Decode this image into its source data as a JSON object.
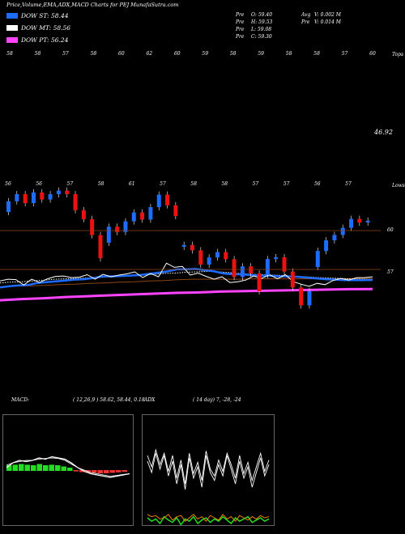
{
  "header": {
    "title": "Price,Volume,EMA,ADX,MACD Charts for PEJ MunafaSutra.com",
    "info_lines": [
      {
        "label": "Pre",
        "value": "O: 59.40"
      },
      {
        "label": "Pre",
        "value": "H: 59.53"
      },
      {
        "label": "Pre",
        "value": "L: 59.08"
      },
      {
        "label": "Pre",
        "value": "C: 59.30"
      }
    ],
    "volume_lines": [
      {
        "label": "Avg",
        "value": "V: 0.002  M"
      },
      {
        "label": "Pre",
        "value": "V: 0.014  M"
      }
    ]
  },
  "legend": [
    {
      "label": "DOW ST: 58.44",
      "color": "#1e6bff"
    },
    {
      "label": "DOW MT: 58.56",
      "color": "#ffffff"
    },
    {
      "label": "DOW PT: 56.24",
      "color": "#ff44ff"
    }
  ],
  "colors": {
    "ema_short": "#1e6bff",
    "ema_mid": "#ffffff",
    "ema_long": "#8b4513",
    "ema_pt": "#ff44ff",
    "up": "#1e6bff",
    "down": "#ee1111",
    "hline": "#8b4513"
  },
  "chart_data": [
    {
      "type": "line",
      "title": "EMA",
      "value_label": "46.92",
      "edge_labels": [
        "Tops",
        "Lows"
      ],
      "top_tick_labels": [
        "58",
        "58",
        "57",
        "58",
        "60",
        "62",
        "60",
        "59",
        "58",
        "59",
        "58",
        "58",
        "57",
        "60"
      ],
      "bottom_tick_labels": [
        "56",
        "56",
        "57",
        "58",
        "61",
        "57",
        "58",
        "58",
        "57",
        "57",
        "56",
        "57"
      ],
      "price": [
        58.2,
        58.6,
        58.5,
        57.2,
        58.6,
        57.8,
        58.7,
        59.3,
        59.4,
        59.0,
        59.1,
        59.7,
        58.6,
        59.8,
        59.2,
        59.6,
        59.9,
        60.4,
        59.0,
        60.0,
        59.2,
        62.5,
        61.5,
        61.7,
        59.6,
        60.1,
        59.3,
        58.6,
        59.2,
        57.8,
        58.0,
        58.4,
        59.4,
        58.8,
        59.7,
        58.7,
        59.7,
        58.0,
        57.4,
        56.9,
        57.6,
        57.3,
        58.3,
        58.8,
        58.4,
        59.0,
        59.0,
        59.2
      ],
      "series": [
        {
          "name": "DOW ST",
          "values": [
            56.6,
            56.9,
            57.1,
            57.2,
            57.7,
            57.9,
            58.1,
            58.3,
            58.5,
            58.6,
            58.9,
            59.3,
            59.3,
            59.4,
            59.5,
            59.6,
            59.9,
            60.2,
            60.5,
            61.0,
            61.0,
            61.1,
            60.8,
            60.5,
            60.0,
            59.8,
            59.8,
            59.6,
            59.5,
            59.5,
            59.3,
            59.3,
            59.2,
            59.0,
            58.8,
            58.6,
            58.5,
            58.4,
            58.4,
            58.4,
            58.44
          ]
        },
        {
          "name": "DOW MT",
          "values": [
            57.7,
            57.9,
            58.0,
            58.2,
            58.4,
            58.6,
            58.7,
            58.8,
            58.9,
            59.0,
            59.2,
            59.3,
            59.5,
            59.6,
            59.8,
            60.0,
            60.1,
            60.3,
            60.4,
            60.5,
            60.4,
            60.2,
            60.0,
            59.8,
            59.7,
            59.6,
            59.5,
            59.3,
            59.2,
            59.0,
            58.9,
            58.8,
            58.7,
            58.6,
            58.56
          ]
        },
        {
          "name": "EMA long",
          "values": [
            56.8,
            56.9,
            57.0,
            57.1,
            57.3,
            57.4,
            57.6,
            57.7,
            57.9,
            58.0,
            58.2,
            58.3,
            58.5,
            58.6,
            58.6,
            58.6,
            58.6,
            58.7,
            58.7,
            58.7,
            58.7,
            58.7,
            58.7,
            58.7,
            58.8,
            58.8
          ]
        },
        {
          "name": "DOW PT",
          "values": [
            53.5,
            53.8,
            54.0,
            54.3,
            54.5,
            54.7,
            54.9,
            55.1,
            55.3,
            55.4,
            55.6,
            55.7,
            55.8,
            55.9,
            56.0,
            56.1,
            56.2,
            56.24
          ]
        }
      ]
    },
    {
      "type": "bar",
      "title": "Candles",
      "level_labels": [
        "60",
        "57"
      ],
      "values": [
        0.6,
        0.4,
        -0.5,
        0.6,
        -0.4,
        0.3,
        0.2,
        -0.2,
        -0.9,
        -0.5,
        -0.9,
        -1.3,
        0.9,
        -0.3,
        0.6,
        0.5,
        -0.4,
        0.7,
        0.7,
        -0.6,
        -0.6,
        0.1,
        -0.3,
        -0.8,
        0.4,
        0.3,
        -0.4,
        -1.0,
        0.6,
        -0.4,
        -1.0,
        0.9,
        0.1,
        -0.8,
        -0.9,
        -1.0,
        0.8,
        0.9,
        0.6,
        0.3,
        0.4,
        0.5,
        -0.2,
        0.1
      ]
    },
    {
      "type": "line",
      "title": "MACD",
      "label": "MACD:",
      "params": "( 12,26,9 ) 58.62,  58.44,  0.18",
      "series": [
        {
          "values": [
            0.1,
            0.3,
            0.4,
            0.35,
            0.4,
            0.5,
            0.45,
            0.55,
            0.5,
            0.45,
            0.3,
            0.1,
            -0.05,
            -0.15,
            -0.2,
            -0.25,
            -0.3,
            -0.25,
            -0.2,
            -0.15
          ]
        },
        {
          "values": [
            0.2,
            0.3,
            0.35,
            0.4,
            0.4,
            0.45,
            0.48,
            0.5,
            0.48,
            0.4,
            0.25,
            0.1,
            0.0,
            -0.1,
            -0.15,
            -0.2,
            -0.25,
            -0.22,
            -0.18,
            -0.15
          ]
        }
      ],
      "histogram": [
        0.2,
        0.22,
        0.25,
        0.22,
        0.2,
        0.25,
        0.2,
        0.22,
        0.2,
        0.15,
        0.1,
        -0.02,
        -0.05,
        -0.08,
        -0.08,
        -0.1,
        -0.1,
        -0.08,
        -0.06,
        -0.04
      ]
    },
    {
      "type": "line",
      "title": "ADX",
      "label": "ADX",
      "params": "( 14 day) 7, -28, -24",
      "series": [
        {
          "values": [
            35,
            45,
            28,
            42,
            30,
            48,
            35,
            55,
            38,
            60,
            32,
            50,
            40,
            58,
            30,
            45,
            52,
            38,
            48,
            30,
            42,
            55,
            35,
            50,
            40,
            58,
            45,
            32,
            48,
            38
          ]
        },
        {
          "values": [
            30,
            40,
            25,
            38,
            28,
            44,
            30,
            50,
            34,
            55,
            28,
            46,
            36,
            52,
            26,
            42,
            48,
            34,
            44,
            28,
            38,
            50,
            30,
            46,
            36,
            52,
            40,
            28,
            44,
            34
          ]
        },
        {
          "values": [
            85,
            88,
            86,
            90,
            84,
            87,
            89,
            85,
            91,
            86,
            88,
            84,
            90,
            87,
            85,
            89,
            86,
            88,
            84,
            87,
            90,
            85,
            88,
            86,
            84,
            89,
            87,
            85,
            88,
            86
          ]
        },
        {
          "values": [
            82,
            84,
            83,
            86,
            85,
            82,
            87,
            84,
            83,
            88,
            85,
            82,
            86,
            84,
            88,
            83,
            85,
            87,
            82,
            86,
            84,
            88,
            83,
            85,
            87,
            84,
            86,
            83,
            85,
            84
          ]
        }
      ]
    }
  ]
}
